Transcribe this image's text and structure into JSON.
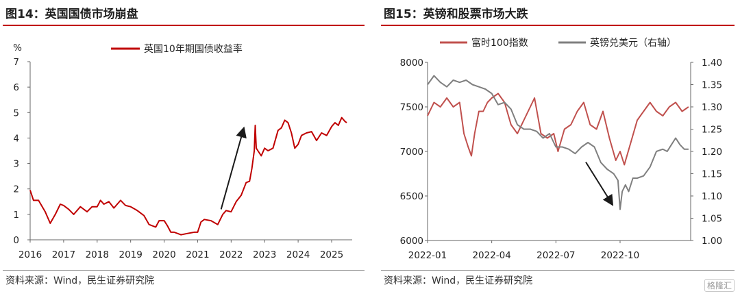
{
  "left": {
    "title": "图14：英国国债市场崩盘",
    "source": "资料来源：Wind，民生证券研究院",
    "chart_data": {
      "type": "line",
      "unit_label": "%",
      "x_ticks": [
        "2016",
        "2017",
        "2018",
        "2019",
        "2020",
        "2021",
        "2022",
        "2023",
        "2024",
        "2025"
      ],
      "x_range": [
        2016.0,
        2025.45
      ],
      "ylim": [
        0,
        7
      ],
      "y_ticks": [
        0,
        1,
        2,
        3,
        4,
        5,
        6,
        7
      ],
      "series": [
        {
          "name": "英国10年期国债收益率",
          "color": "#c00000",
          "x": [
            2016.0,
            2016.1,
            2016.25,
            2016.45,
            2016.6,
            2016.75,
            2016.9,
            2017.0,
            2017.15,
            2017.3,
            2017.5,
            2017.7,
            2017.85,
            2018.0,
            2018.1,
            2018.2,
            2018.35,
            2018.5,
            2018.7,
            2018.85,
            2019.0,
            2019.2,
            2019.4,
            2019.55,
            2019.65,
            2019.75,
            2019.85,
            2020.0,
            2020.1,
            2020.2,
            2020.3,
            2020.5,
            2020.7,
            2020.9,
            2021.0,
            2021.1,
            2021.2,
            2021.4,
            2021.6,
            2021.75,
            2021.85,
            2022.0,
            2022.15,
            2022.3,
            2022.45,
            2022.55,
            2022.62,
            2022.69,
            2022.72,
            2022.75,
            2022.8,
            2022.9,
            2023.0,
            2023.1,
            2023.25,
            2023.4,
            2023.5,
            2023.6,
            2023.7,
            2023.8,
            2023.9,
            2024.0,
            2024.1,
            2024.25,
            2024.4,
            2024.55,
            2024.7,
            2024.85,
            2025.0,
            2025.1,
            2025.2,
            2025.3,
            2025.4,
            2025.45
          ],
          "y": [
            1.95,
            1.55,
            1.55,
            1.1,
            0.65,
            1.0,
            1.4,
            1.35,
            1.2,
            1.0,
            1.3,
            1.1,
            1.3,
            1.3,
            1.55,
            1.4,
            1.5,
            1.25,
            1.55,
            1.35,
            1.3,
            1.15,
            0.95,
            0.6,
            0.55,
            0.5,
            0.75,
            0.75,
            0.55,
            0.3,
            0.3,
            0.2,
            0.25,
            0.3,
            0.3,
            0.7,
            0.8,
            0.75,
            0.6,
            1.0,
            1.15,
            1.1,
            1.5,
            1.75,
            2.25,
            2.3,
            2.8,
            3.5,
            4.5,
            3.6,
            3.5,
            3.3,
            3.6,
            3.5,
            3.6,
            4.3,
            4.4,
            4.7,
            4.6,
            4.2,
            3.6,
            3.75,
            4.1,
            4.2,
            4.25,
            3.9,
            4.2,
            4.1,
            4.45,
            4.6,
            4.5,
            4.8,
            4.65,
            4.6
          ]
        }
      ],
      "arrow": {
        "from": [
          2021.7,
          1.2
        ],
        "to": [
          2022.38,
          4.4
        ]
      },
      "grid": false
    }
  },
  "right": {
    "title": "图15：英镑和股票市场大跌",
    "source": "资料来源：Wind，民生证券研究院",
    "watermark": "格隆汇",
    "chart_data": {
      "type": "line",
      "x_ticks": [
        "2022-01",
        "2022-04",
        "2022-07",
        "2022-10"
      ],
      "x_tick_months": [
        0,
        3,
        6,
        9
      ],
      "x_range": [
        0,
        12.3
      ],
      "ylim": [
        6000,
        8000
      ],
      "y_ticks": [
        6000,
        6500,
        7000,
        7500,
        8000
      ],
      "y2lim": [
        1.0,
        1.4
      ],
      "y2_ticks": [
        "1.00",
        "1.05",
        "1.10",
        "1.15",
        "1.20",
        "1.25",
        "1.30",
        "1.35",
        "1.40"
      ],
      "series": [
        {
          "name": "富时100指数",
          "axis": "left",
          "color": "#c0504d",
          "x": [
            0.0,
            0.3,
            0.6,
            0.9,
            1.2,
            1.5,
            1.7,
            1.9,
            2.05,
            2.2,
            2.4,
            2.6,
            2.8,
            3.0,
            3.3,
            3.6,
            3.9,
            4.2,
            4.5,
            4.8,
            5.0,
            5.3,
            5.6,
            5.9,
            6.1,
            6.4,
            6.7,
            7.0,
            7.3,
            7.6,
            7.9,
            8.2,
            8.5,
            8.8,
            9.0,
            9.2,
            9.5,
            9.8,
            10.1,
            10.4,
            10.7,
            11.0,
            11.3,
            11.6,
            11.9,
            12.2
          ],
          "y": [
            7400,
            7550,
            7500,
            7600,
            7500,
            7550,
            7200,
            7050,
            6950,
            7200,
            7450,
            7450,
            7550,
            7600,
            7650,
            7550,
            7300,
            7200,
            7350,
            7500,
            7600,
            7200,
            7150,
            7200,
            7000,
            7250,
            7300,
            7450,
            7550,
            7300,
            7250,
            7450,
            7150,
            6900,
            7000,
            6850,
            7100,
            7350,
            7450,
            7550,
            7450,
            7400,
            7500,
            7550,
            7450,
            7500
          ]
        },
        {
          "name": "英镑兑美元（右轴）",
          "axis": "right",
          "color": "#7f7f7f",
          "x": [
            0.0,
            0.3,
            0.6,
            0.9,
            1.2,
            1.5,
            1.8,
            2.1,
            2.4,
            2.7,
            3.0,
            3.3,
            3.6,
            3.9,
            4.2,
            4.5,
            4.8,
            5.1,
            5.4,
            5.7,
            6.0,
            6.3,
            6.6,
            6.9,
            7.2,
            7.5,
            7.8,
            8.1,
            8.4,
            8.7,
            8.9,
            9.0,
            9.1,
            9.25,
            9.4,
            9.6,
            9.8,
            10.1,
            10.4,
            10.7,
            11.0,
            11.2,
            11.4,
            11.6,
            11.8,
            12.0,
            12.2
          ],
          "y": [
            1.35,
            1.37,
            1.355,
            1.345,
            1.36,
            1.355,
            1.36,
            1.35,
            1.345,
            1.34,
            1.33,
            1.305,
            1.31,
            1.295,
            1.26,
            1.25,
            1.25,
            1.245,
            1.23,
            1.24,
            1.21,
            1.21,
            1.205,
            1.195,
            1.21,
            1.22,
            1.21,
            1.175,
            1.16,
            1.15,
            1.135,
            1.07,
            1.11,
            1.125,
            1.11,
            1.14,
            1.14,
            1.145,
            1.165,
            1.2,
            1.205,
            1.2,
            1.215,
            1.23,
            1.215,
            1.205,
            1.205
          ]
        }
      ],
      "arrow": {
        "from": [
          7.4,
          6880
        ],
        "to": [
          8.65,
          6400
        ]
      },
      "grid": false
    }
  }
}
